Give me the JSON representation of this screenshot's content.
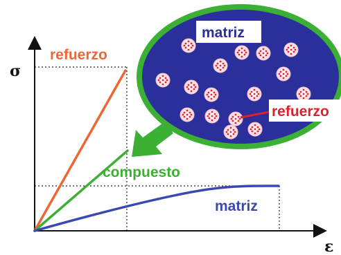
{
  "axes": {
    "y_symbol": "σ",
    "x_symbol": "ε"
  },
  "curves": [
    {
      "label": "refuerzo",
      "color": "#ee6633"
    },
    {
      "label": "compuesto",
      "color": "#3cb034"
    },
    {
      "label": "matriz",
      "color": "#3a48b4"
    }
  ],
  "inset": {
    "matrix_label": "matriz",
    "reinforcement_label": "refuerzo",
    "fill_color": "#2b2f9c",
    "rim_color": "#3cb034",
    "particle_count": 16,
    "arrow_color": "#3cb034"
  }
}
